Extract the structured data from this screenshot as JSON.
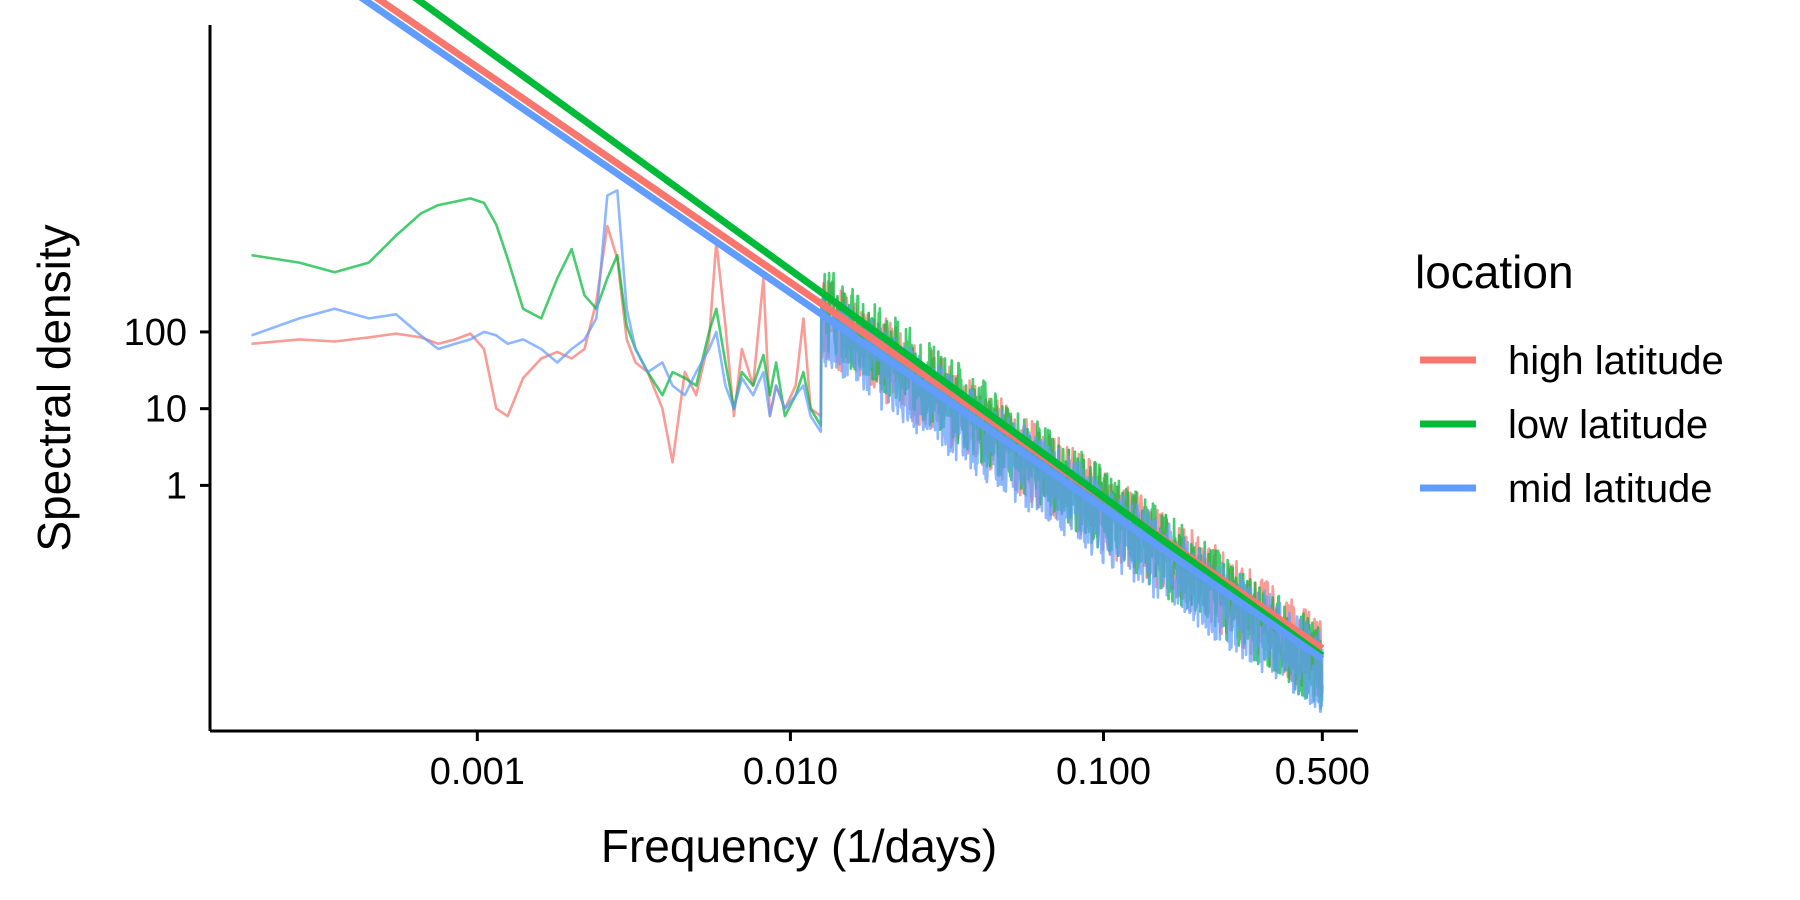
{
  "chart_data": {
    "type": "line",
    "xlabel": "Frequency (1/days)",
    "ylabel": "Spectral density",
    "x_scale": "log10",
    "y_scale": "log10",
    "xlim": [
      0.00014,
      0.65
    ],
    "ylim": [
      0.00063,
      1000000
    ],
    "x_ticks": [
      {
        "value": 0.001,
        "label": "0.001"
      },
      {
        "value": 0.01,
        "label": "0.010"
      },
      {
        "value": 0.1,
        "label": "0.100"
      },
      {
        "value": 0.5,
        "label": "0.500"
      }
    ],
    "y_ticks": [
      {
        "value": 1,
        "label": "1"
      },
      {
        "value": 10,
        "label": "10"
      },
      {
        "value": 100,
        "label": "100"
      }
    ],
    "grid": false,
    "legend": {
      "title": "location",
      "position": "right",
      "entries": [
        {
          "name": "high latitude",
          "color": "#F8766D"
        },
        {
          "name": "low latitude",
          "color": "#00BA38"
        },
        {
          "name": "mid latitude",
          "color": "#619CFF"
        }
      ]
    },
    "series": [
      {
        "name": "high latitude",
        "color": "#F8766D",
        "spectrum_x": [
          0.00019,
          0.00027,
          0.00035,
          0.00045,
          0.00055,
          0.00066,
          0.00075,
          0.00085,
          0.00095,
          0.00105,
          0.00115,
          0.00125,
          0.0014,
          0.0016,
          0.0018,
          0.002,
          0.0022,
          0.0024,
          0.0026,
          0.0028,
          0.003,
          0.0032,
          0.0035,
          0.0039,
          0.0042,
          0.0046,
          0.005,
          0.0055,
          0.0058,
          0.0062,
          0.0066,
          0.007,
          0.0076,
          0.0082,
          0.0086,
          0.009,
          0.0096,
          0.0104,
          0.011,
          0.0116,
          0.0125
        ],
        "spectrum_y": [
          70,
          80,
          75,
          85,
          95,
          85,
          70,
          80,
          95,
          60,
          10,
          8,
          25,
          45,
          55,
          45,
          60,
          250,
          2400,
          900,
          80,
          40,
          30,
          10,
          2,
          30,
          15,
          80,
          1500,
          120,
          8,
          60,
          20,
          500,
          8,
          20,
          10,
          20,
          150,
          10,
          8
        ],
        "fit": {
          "x": [
            0.00019,
            0.5
          ],
          "y": [
            30000000,
            0.0075
          ]
        }
      },
      {
        "name": "low latitude",
        "color": "#00BA38",
        "spectrum_x": [
          0.00019,
          0.00027,
          0.00035,
          0.00045,
          0.00055,
          0.00066,
          0.00075,
          0.00085,
          0.00095,
          0.00105,
          0.00115,
          0.00125,
          0.0014,
          0.0016,
          0.0018,
          0.002,
          0.0022,
          0.0024,
          0.0026,
          0.0028,
          0.003,
          0.0032,
          0.0035,
          0.0039,
          0.0042,
          0.0046,
          0.005,
          0.0055,
          0.0058,
          0.0062,
          0.0066,
          0.007,
          0.0076,
          0.0082,
          0.0086,
          0.009,
          0.0096,
          0.0104,
          0.011,
          0.0116,
          0.0125
        ],
        "spectrum_y": [
          1000,
          800,
          600,
          800,
          1800,
          3500,
          4500,
          5000,
          5500,
          4800,
          2500,
          900,
          200,
          150,
          500,
          1200,
          300,
          200,
          500,
          1000,
          120,
          60,
          30,
          15,
          30,
          25,
          20,
          100,
          200,
          40,
          10,
          30,
          20,
          50,
          15,
          40,
          8,
          15,
          30,
          10,
          6
        ],
        "fit": {
          "x": [
            0.00019,
            0.5
          ],
          "y": [
            80000000,
            0.006
          ]
        }
      },
      {
        "name": "mid latitude",
        "color": "#619CFF",
        "spectrum_x": [
          0.00019,
          0.00027,
          0.00035,
          0.00045,
          0.00055,
          0.00066,
          0.00075,
          0.00085,
          0.00095,
          0.00105,
          0.00115,
          0.00125,
          0.0014,
          0.0016,
          0.0018,
          0.002,
          0.0022,
          0.0024,
          0.0026,
          0.0028,
          0.003,
          0.0032,
          0.0035,
          0.0039,
          0.0042,
          0.0046,
          0.005,
          0.0055,
          0.0058,
          0.0062,
          0.0066,
          0.007,
          0.0076,
          0.0082,
          0.0086,
          0.009,
          0.0096,
          0.0104,
          0.011,
          0.0116,
          0.0125
        ],
        "spectrum_y": [
          90,
          150,
          200,
          150,
          170,
          90,
          60,
          70,
          80,
          100,
          90,
          70,
          80,
          60,
          40,
          60,
          80,
          150,
          6000,
          7000,
          200,
          60,
          30,
          40,
          20,
          15,
          30,
          60,
          100,
          20,
          10,
          25,
          15,
          30,
          8,
          20,
          10,
          15,
          20,
          8,
          5
        ],
        "fit": {
          "x": [
            0.00019,
            0.5
          ],
          "y": [
            22000000,
            0.0055
          ]
        }
      }
    ]
  }
}
